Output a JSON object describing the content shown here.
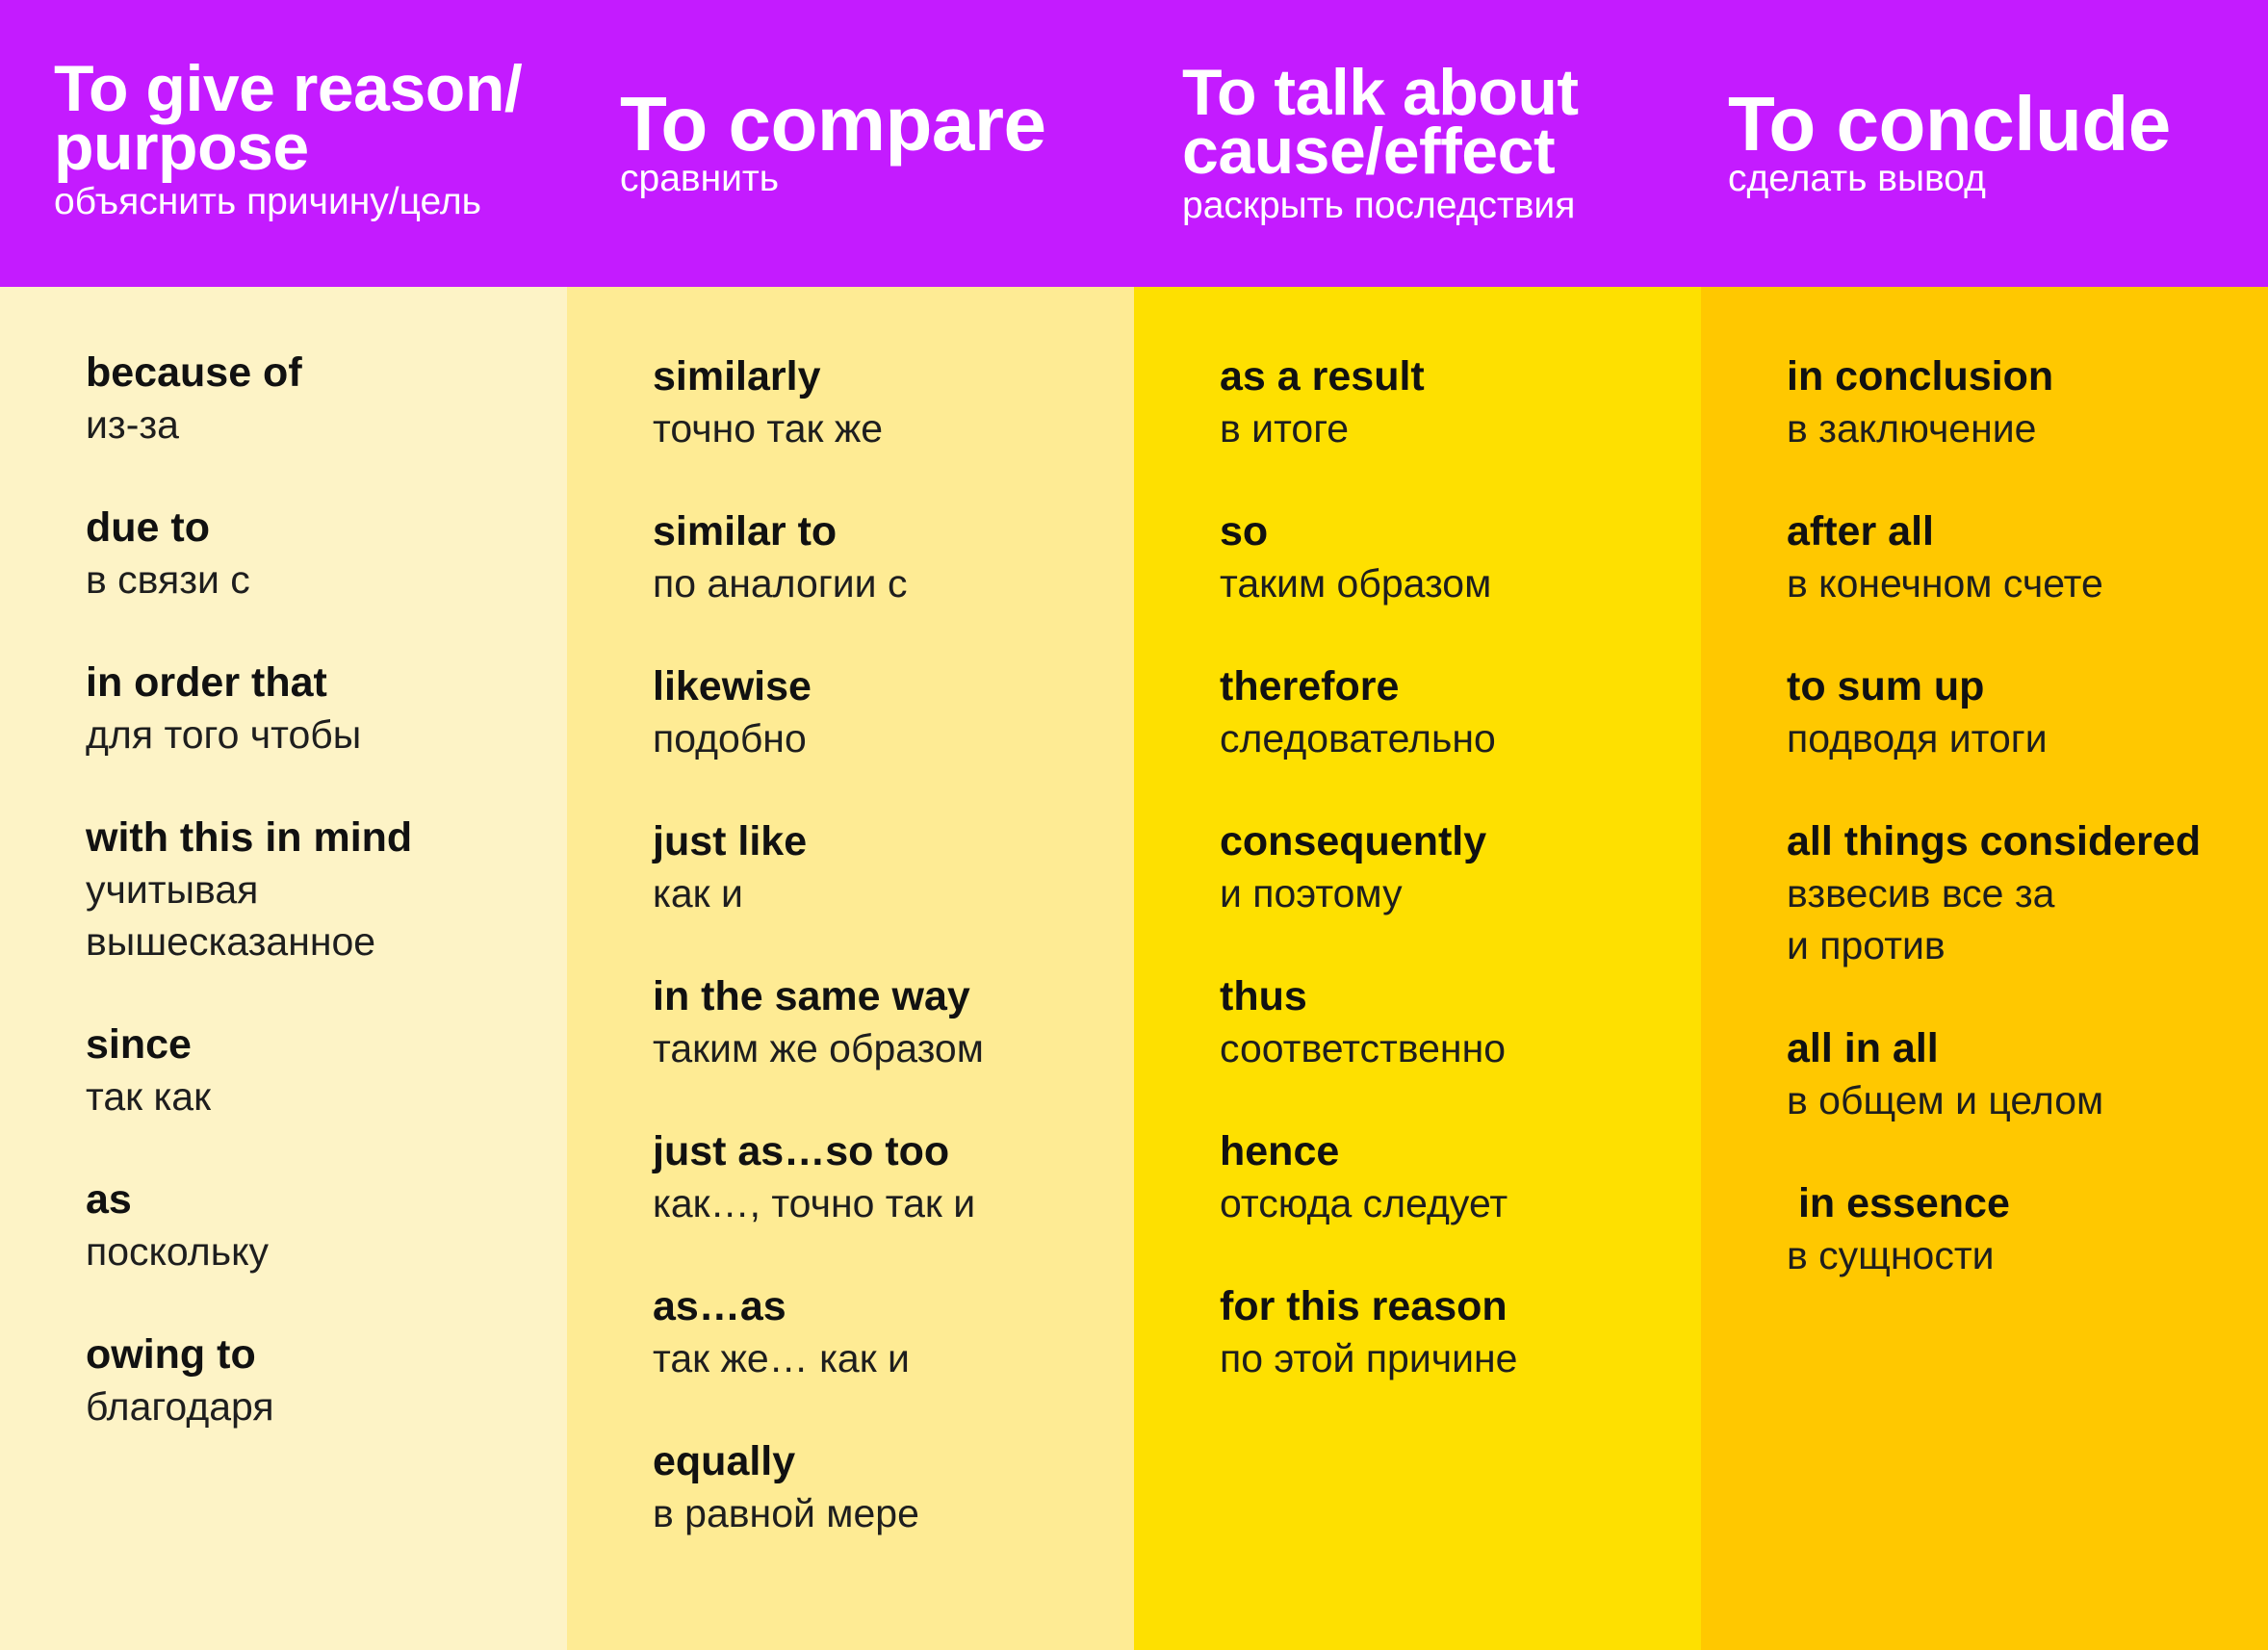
{
  "header": {
    "columns": [
      {
        "title_line1": "To give reason/",
        "title_line2": "purpose",
        "subtitle": "объяснить причину/цель"
      },
      {
        "title": "To compare",
        "subtitle": "сравнить"
      },
      {
        "title_line1": "To talk about",
        "title_line2": "cause/effect",
        "subtitle": "раскрыть последствия"
      },
      {
        "title": "To conclude",
        "subtitle": "сделать вывод"
      }
    ]
  },
  "columns": [
    {
      "items": [
        {
          "en": "because of",
          "ru": "из-за"
        },
        {
          "en": "due to",
          "ru": "в связи с"
        },
        {
          "en": "in order that",
          "ru": "для того чтобы"
        },
        {
          "en": "with this in mind",
          "ru_line1": "учитывая",
          "ru_line2": "вышесказанное"
        },
        {
          "en": "since",
          "ru": "так как"
        },
        {
          "en": "as",
          "ru": "поскольку"
        },
        {
          "en": "owing to",
          "ru": "благодаря"
        }
      ]
    },
    {
      "items": [
        {
          "en": "similarly",
          "ru": "точно так же"
        },
        {
          "en": "similar to",
          "ru": "по аналогии с"
        },
        {
          "en": "likewise",
          "ru": "подобно"
        },
        {
          "en": "just like",
          "ru": "как и"
        },
        {
          "en": "in the same way",
          "ru": "таким же образом"
        },
        {
          "en": "just as…so too",
          "ru": "как…, точно так и"
        },
        {
          "en": "as…as",
          "ru": "так же… как и"
        },
        {
          "en": "equally",
          "ru": "в равной мере"
        }
      ]
    },
    {
      "items": [
        {
          "en": "as a result",
          "ru": "в итоге"
        },
        {
          "en": "so",
          "ru": "таким образом"
        },
        {
          "en": "therefore",
          "ru": "следовательно"
        },
        {
          "en": "consequently",
          "ru": "и поэтому"
        },
        {
          "en": "thus",
          "ru": "соответственно"
        },
        {
          "en": "hence",
          "ru": "отсюда следует"
        },
        {
          "en": "for this reason",
          "ru": "по этой причине"
        }
      ]
    },
    {
      "items": [
        {
          "en": "in conclusion",
          "ru": "в заключение"
        },
        {
          "en": "after all",
          "ru": "в конечном счете"
        },
        {
          "en": "to sum up",
          "ru": "подводя итоги"
        },
        {
          "en": "all things considered",
          "ru_line1": "взвесив все за",
          "ru_line2": "и против"
        },
        {
          "en": "all in all",
          "ru": "в общем и целом"
        },
        {
          "en": " in essence",
          "ru": "в сущности"
        }
      ]
    }
  ],
  "colors": {
    "header_bg": "#c41bff",
    "col1_bg": "#fdf3c6",
    "col2_bg": "#feeb94",
    "col3_bg": "#fee000",
    "col4_bg": "#ffc800"
  }
}
